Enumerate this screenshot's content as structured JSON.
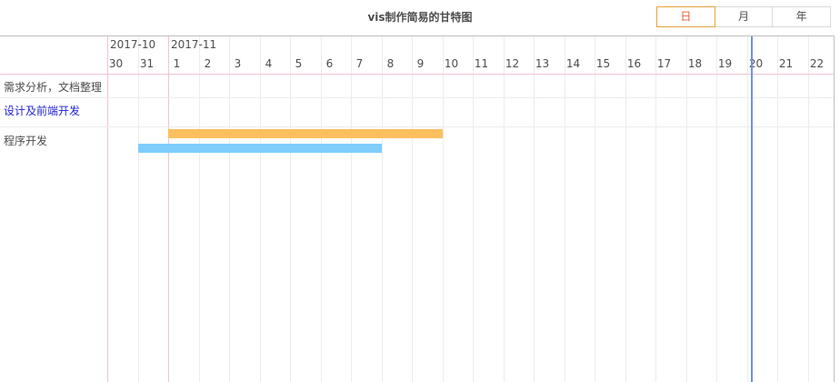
{
  "title": "vis制作简易的甘特图",
  "scale": {
    "options": [
      "日",
      "月",
      "年"
    ],
    "active_index": 0,
    "active_border_color": "#e6a23c",
    "active_text_color": "#e65c2c"
  },
  "timeline": {
    "major_labels": [
      "2017-10",
      "2017-11"
    ],
    "minor_labels": [
      "30",
      "31",
      "1",
      "2",
      "3",
      "4",
      "5",
      "6",
      "7",
      "8",
      "9",
      "10",
      "11",
      "12",
      "13",
      "14",
      "15",
      "16",
      "17",
      "18",
      "19",
      "20",
      "21",
      "22"
    ],
    "groups": [
      {
        "label": "需求分析，文档整理",
        "is_link": false
      },
      {
        "label": "设计及前端开发",
        "is_link": true
      },
      {
        "label": "程序开发",
        "is_link": false
      }
    ],
    "items": [
      {
        "group": "程序开发",
        "start": "2017-11-01",
        "end": "2017-11-10",
        "color": "#fbbf5e"
      },
      {
        "group": "程序开发",
        "start": "2017-10-31",
        "end": "2017-11-08",
        "color": "#7fcdfb"
      }
    ],
    "current_time": "2017-11-20",
    "current_time_color": "#6e94d7"
  }
}
